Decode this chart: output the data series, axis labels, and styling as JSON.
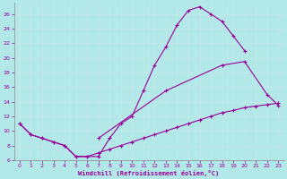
{
  "xlabel": "Windchill (Refroidissement éolien,°C)",
  "xlim": [
    -0.5,
    23.5
  ],
  "ylim": [
    6,
    27.5
  ],
  "background_color": "#b2e8e8",
  "line_color": "#990099",
  "grid_color": "#d0f0f0",
  "x_ticks": [
    0,
    1,
    2,
    3,
    4,
    5,
    6,
    7,
    8,
    9,
    10,
    11,
    12,
    13,
    14,
    15,
    16,
    17,
    18,
    19,
    20,
    21,
    22,
    23
  ],
  "y_ticks": [
    6,
    8,
    10,
    12,
    14,
    16,
    18,
    20,
    22,
    24,
    26
  ],
  "line1_x": [
    0,
    1,
    2,
    3,
    4,
    5,
    6,
    7,
    8,
    9,
    10,
    11,
    12,
    13,
    14,
    15,
    16,
    17,
    18,
    19,
    20
  ],
  "line1_y": [
    11,
    9.5,
    9,
    8.5,
    8,
    6.5,
    6.5,
    6.5,
    9,
    11,
    12,
    15.5,
    19,
    21.5,
    24.5,
    26.5,
    27,
    26,
    25,
    23,
    21
  ],
  "line2_x": [
    0,
    1,
    2,
    3,
    4,
    5,
    6,
    7,
    8,
    9,
    10,
    11,
    12,
    13,
    14,
    15,
    16,
    17,
    18,
    19,
    20,
    21,
    22,
    23
  ],
  "line2_y": [
    11,
    9.5,
    9,
    8.5,
    8,
    6.5,
    6.5,
    7,
    7.5,
    8,
    8.5,
    9,
    9.5,
    10,
    10.5,
    11,
    11.5,
    12,
    12.5,
    12.8,
    13.2,
    13.4,
    13.6,
    13.8
  ],
  "line3_x": [
    7,
    13,
    18,
    20,
    22,
    23
  ],
  "line3_y": [
    9,
    15.5,
    19,
    19.5,
    15,
    13.5
  ]
}
